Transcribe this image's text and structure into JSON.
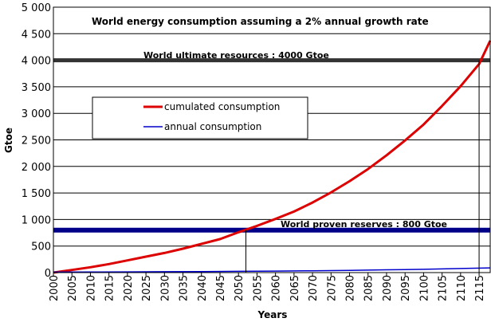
{
  "chart_data": {
    "type": "line",
    "title": "World energy consumption assuming a 2% annual growth rate",
    "xlabel": "Years",
    "ylabel": "Gtoe",
    "xlim": [
      2000,
      2118
    ],
    "ylim": [
      0,
      5000
    ],
    "y_ticks": [
      0,
      500,
      1000,
      1500,
      2000,
      2500,
      3000,
      3500,
      4000,
      4500,
      5000
    ],
    "y_tick_labels": [
      "0",
      "500",
      "1 000",
      "1 500",
      "2 000",
      "2 500",
      "3 000",
      "3 500",
      "4 000",
      "4 500",
      "5 000"
    ],
    "x_ticks": [
      2000,
      2005,
      2010,
      2015,
      2020,
      2025,
      2030,
      2035,
      2040,
      2045,
      2050,
      2055,
      2060,
      2065,
      2070,
      2075,
      2080,
      2085,
      2090,
      2095,
      2100,
      2105,
      2110,
      2115
    ],
    "grid": true,
    "legend_placement": "upper-left",
    "series": [
      {
        "name": "cumulated consumption",
        "color": "#dd0000",
        "x": [
          2000,
          2005,
          2010,
          2015,
          2020,
          2025,
          2030,
          2035,
          2040,
          2045,
          2050,
          2055,
          2060,
          2065,
          2070,
          2075,
          2080,
          2085,
          2090,
          2095,
          2100,
          2105,
          2110,
          2115,
          2118
        ],
        "values": [
          0,
          50,
          100,
          160,
          230,
          300,
          370,
          450,
          540,
          630,
          760,
          880,
          1010,
          1150,
          1320,
          1510,
          1720,
          1950,
          2210,
          2490,
          2790,
          3140,
          3510,
          3930,
          4370
        ]
      },
      {
        "name": "annual consumption",
        "color": "#0000cc",
        "x": [
          2000,
          2010,
          2020,
          2030,
          2040,
          2050,
          2060,
          2070,
          2080,
          2090,
          2100,
          2110,
          2118
        ],
        "values": [
          9,
          11,
          13,
          16,
          20,
          24,
          29,
          35,
          42,
          52,
          62,
          76,
          89
        ]
      }
    ],
    "reference_lines": [
      {
        "label": "World ultimate resources : 4000 Gtoe",
        "value": 4000,
        "color": "#333333"
      },
      {
        "label": "World proven reserves  : 800 Gtoe",
        "value": 800,
        "color": "#000088"
      }
    ],
    "markers": [
      {
        "x": 2052,
        "value": 800
      },
      {
        "x": 2115,
        "value": 4000
      }
    ]
  }
}
